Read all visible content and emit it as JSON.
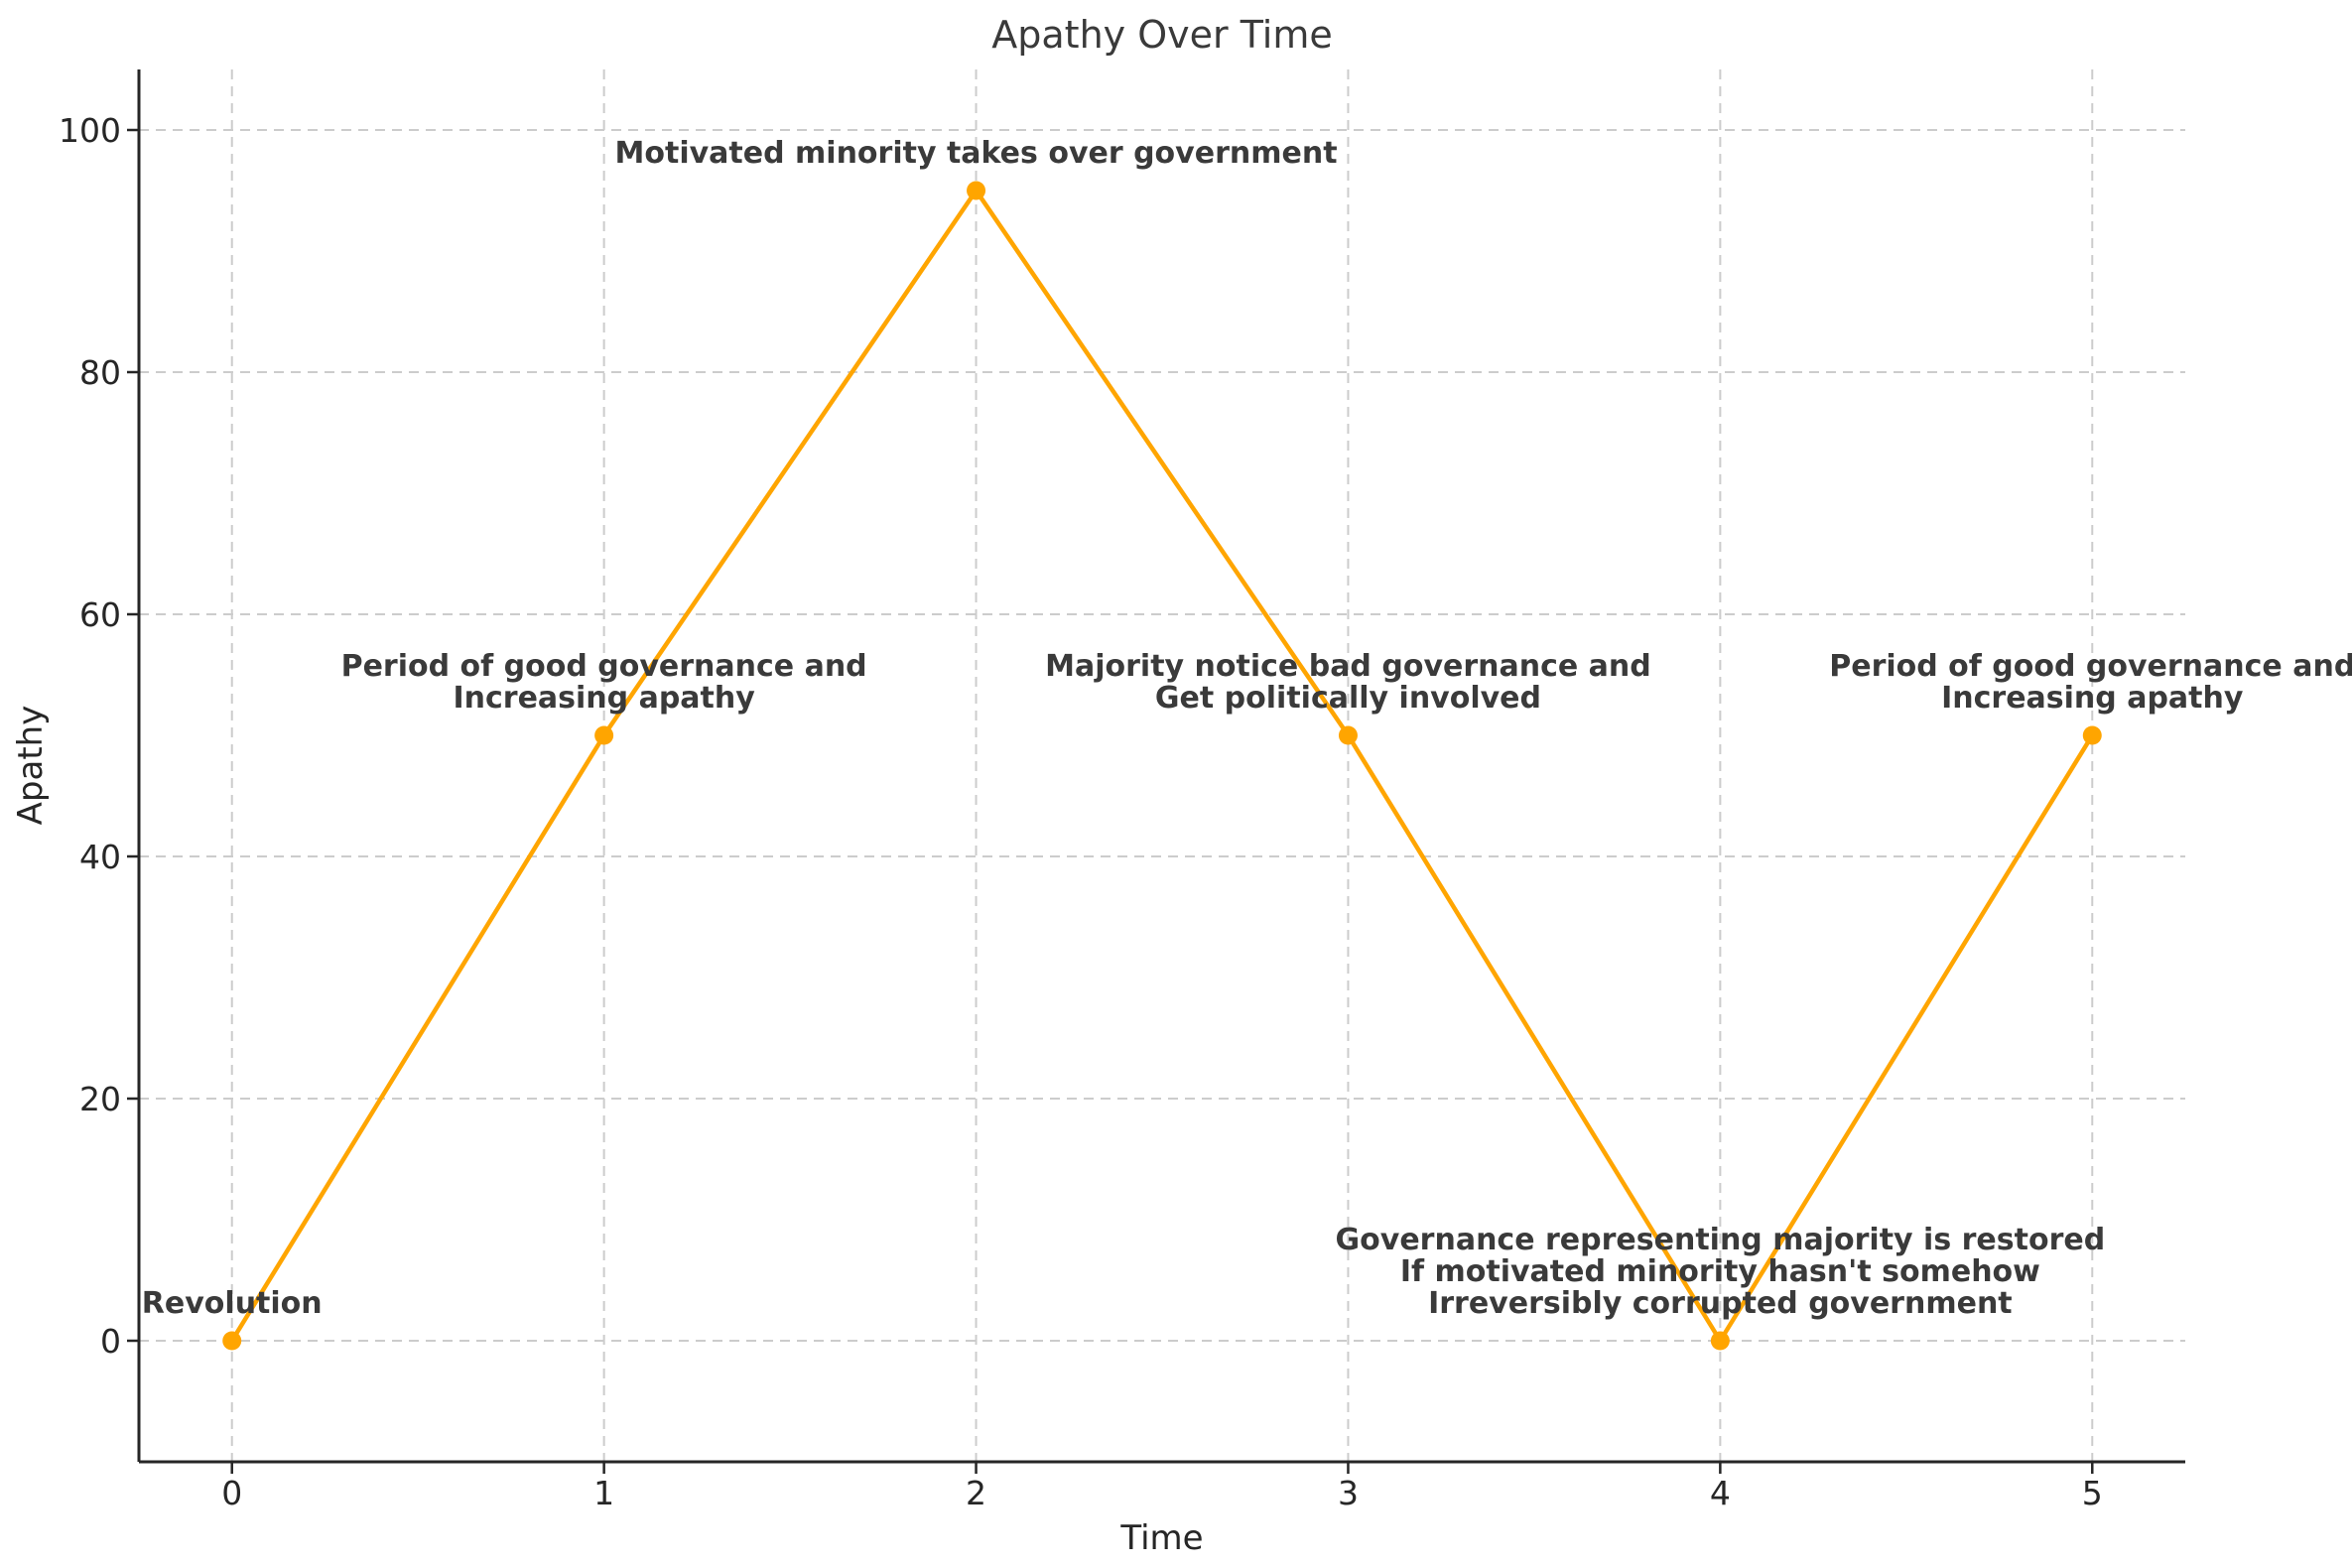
{
  "chart_data": {
    "type": "line",
    "title": "Apathy Over Time",
    "xlabel": "Time",
    "ylabel": "Apathy",
    "series": [
      {
        "name": "Apathy",
        "x": [
          0,
          1,
          2,
          3,
          4,
          5
        ],
        "values": [
          0,
          50,
          95,
          50,
          0,
          50
        ]
      }
    ],
    "xticks": [
      0,
      1,
      2,
      3,
      4,
      5
    ],
    "yticks": [
      0,
      20,
      40,
      60,
      80,
      100
    ],
    "xlim": [
      -0.25,
      5.25
    ],
    "ylim": [
      -10,
      105
    ],
    "grid": true,
    "grid_style": "dashed",
    "legend": "none",
    "colors": {
      "line": "#FFA500",
      "marker": "#FFA500",
      "grid": "#cccccc",
      "spine": "#262626",
      "tick_label": "#262626",
      "title": "#3a3a3a",
      "annotation": "#3a3a3a"
    },
    "annotations": [
      {
        "x": 0,
        "y": 0,
        "lines": [
          "Revolution"
        ]
      },
      {
        "x": 1,
        "y": 50,
        "lines": [
          "Period of good governance and",
          "Increasing apathy"
        ]
      },
      {
        "x": 2,
        "y": 95,
        "lines": [
          "Motivated minority takes over government"
        ]
      },
      {
        "x": 3,
        "y": 50,
        "lines": [
          "Majority notice bad governance and",
          "Get politically involved"
        ]
      },
      {
        "x": 4,
        "y": 0,
        "lines": [
          "Governance representing majority is restored",
          "If motivated minority hasn't somehow",
          "Irreversibly corrupted government"
        ]
      },
      {
        "x": 5,
        "y": 50,
        "lines": [
          "Period of good governance and",
          "Increasing apathy"
        ]
      }
    ]
  }
}
